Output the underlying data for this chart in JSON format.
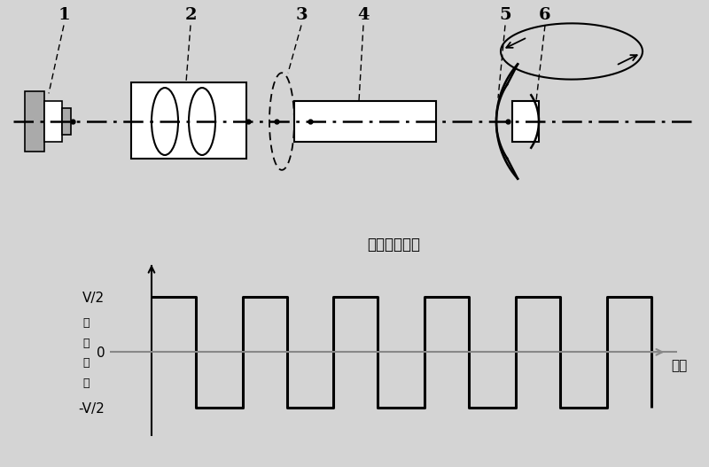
{
  "bg_color": "#d4d4d4",
  "title": "电信号波形图",
  "ylabel_chars": [
    "电",
    "场",
    "强",
    "度"
  ],
  "xlabel": "时间",
  "ytick_labels": [
    "V/2",
    "0",
    "-V/2"
  ],
  "lc": "#000000",
  "gc": "#aaaaaa",
  "axis_color": "#888888"
}
